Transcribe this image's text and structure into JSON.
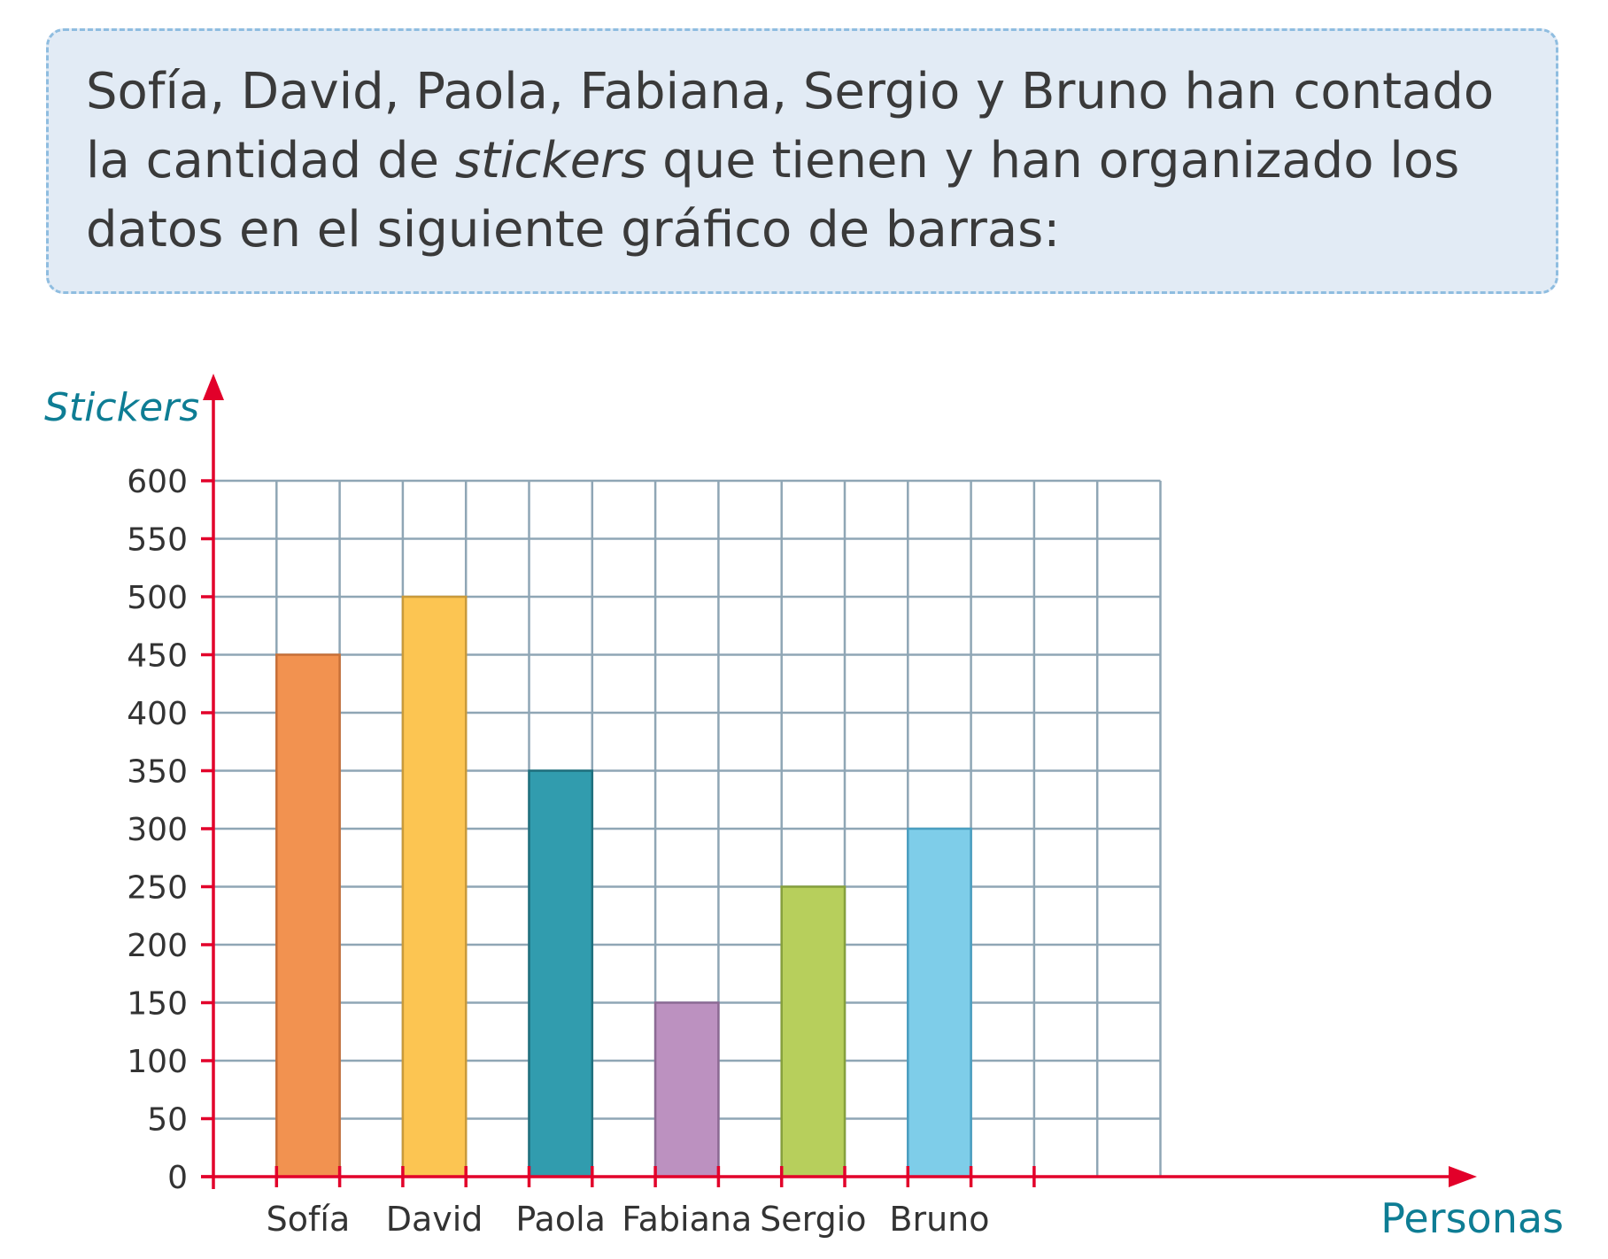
{
  "intro": {
    "text_before": "Sofía, David, Paola, Fabiana, Sergio y Bruno han contado la cantidad de ",
    "text_italic": "stickers",
    "text_after": " que tienen y han organizado los datos en el siguiente gráfico de barras:"
  },
  "colors": {
    "axis": "#e2002a",
    "grid": "#8fa6b5",
    "box_bg": "#e2ebf5",
    "box_border": "#8fbde0",
    "title": "#0e7d94"
  },
  "chart_data": {
    "type": "bar",
    "ylabel": "Stickers",
    "xlabel": "Personas",
    "title": "",
    "ylim": [
      0,
      600
    ],
    "ytick_step": 50,
    "yticks": [
      "0",
      "50",
      "100",
      "150",
      "200",
      "250",
      "300",
      "350",
      "400",
      "450",
      "500",
      "550",
      "600"
    ],
    "grid": true,
    "categories": [
      "Sofía",
      "David",
      "Paola",
      "Fabiana",
      "Sergio",
      "Bruno"
    ],
    "values": [
      450,
      500,
      350,
      150,
      250,
      300
    ],
    "bar_colors": [
      "#f29250",
      "#fcc552",
      "#319cae",
      "#bc91c0",
      "#b7cf5c",
      "#7ecde9"
    ],
    "bar_edge_colors": [
      "#c87038",
      "#c99a3a",
      "#1f6f7d",
      "#8c6a94",
      "#86a03c",
      "#4a9ec0"
    ]
  }
}
